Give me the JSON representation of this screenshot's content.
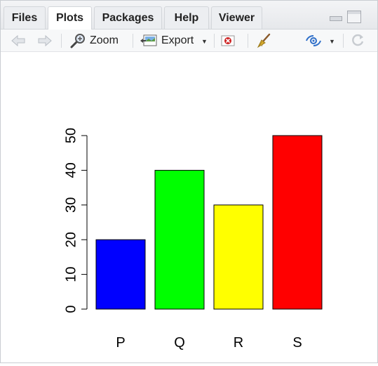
{
  "tabs": [
    {
      "label": "Files"
    },
    {
      "label": "Plots"
    },
    {
      "label": "Packages"
    },
    {
      "label": "Help"
    },
    {
      "label": "Viewer"
    }
  ],
  "toolbar": {
    "zoom_label": "Zoom",
    "export_label": "Export"
  },
  "icons": {
    "back": "back-arrow-icon",
    "forward": "forward-arrow-icon",
    "zoom": "magnifier-icon",
    "export": "export-image-icon",
    "remove": "remove-plot-icon",
    "clear": "broom-icon",
    "publish": "publish-icon",
    "refresh": "refresh-icon"
  },
  "chart_data": {
    "type": "bar",
    "categories": [
      "P",
      "Q",
      "R",
      "S"
    ],
    "values": [
      20,
      40,
      30,
      50
    ],
    "colors": [
      "#0000ff",
      "#00ff00",
      "#ffff00",
      "#ff0000"
    ],
    "yticks": [
      0,
      10,
      20,
      30,
      40,
      50
    ],
    "ylim": [
      0,
      50
    ],
    "title": "",
    "xlabel": "",
    "ylabel": "",
    "grid": false
  }
}
